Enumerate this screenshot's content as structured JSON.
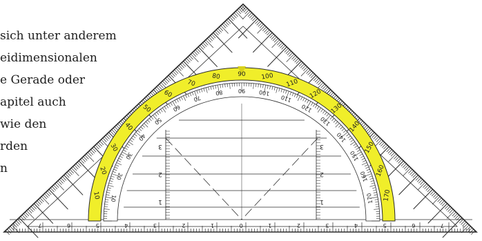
{
  "paragraph_lines": [
    "sich unter anderem",
    "eidimensionalen",
    "e Gerade oder",
    "apitel auch",
    "wie den",
    "rden",
    "n"
  ],
  "set_square": {
    "protractor_outer_labels": [
      "170",
      "160",
      "150",
      "140",
      "130",
      "120",
      "110",
      "100",
      "90",
      "80",
      "70",
      "60",
      "50",
      "40",
      "30",
      "20",
      "10"
    ],
    "protractor_inner_labels": [
      "10",
      "20",
      "30",
      "40",
      "50",
      "60",
      "70",
      "80",
      "90",
      "100",
      "110",
      "120",
      "130",
      "140",
      "150",
      "160",
      "170"
    ],
    "ruler_labels": [
      "7",
      "6",
      "5",
      "4",
      "3",
      "2",
      "1",
      "0",
      "1",
      "2",
      "3",
      "4",
      "5",
      "6",
      "7"
    ],
    "vertical_scale_labels": [
      "3",
      "2",
      "1"
    ],
    "colors": {
      "outline": "#2a2a2a",
      "highlight": "#f0ee2a",
      "text": "#1e1e1e",
      "background": "#ffffff"
    }
  }
}
